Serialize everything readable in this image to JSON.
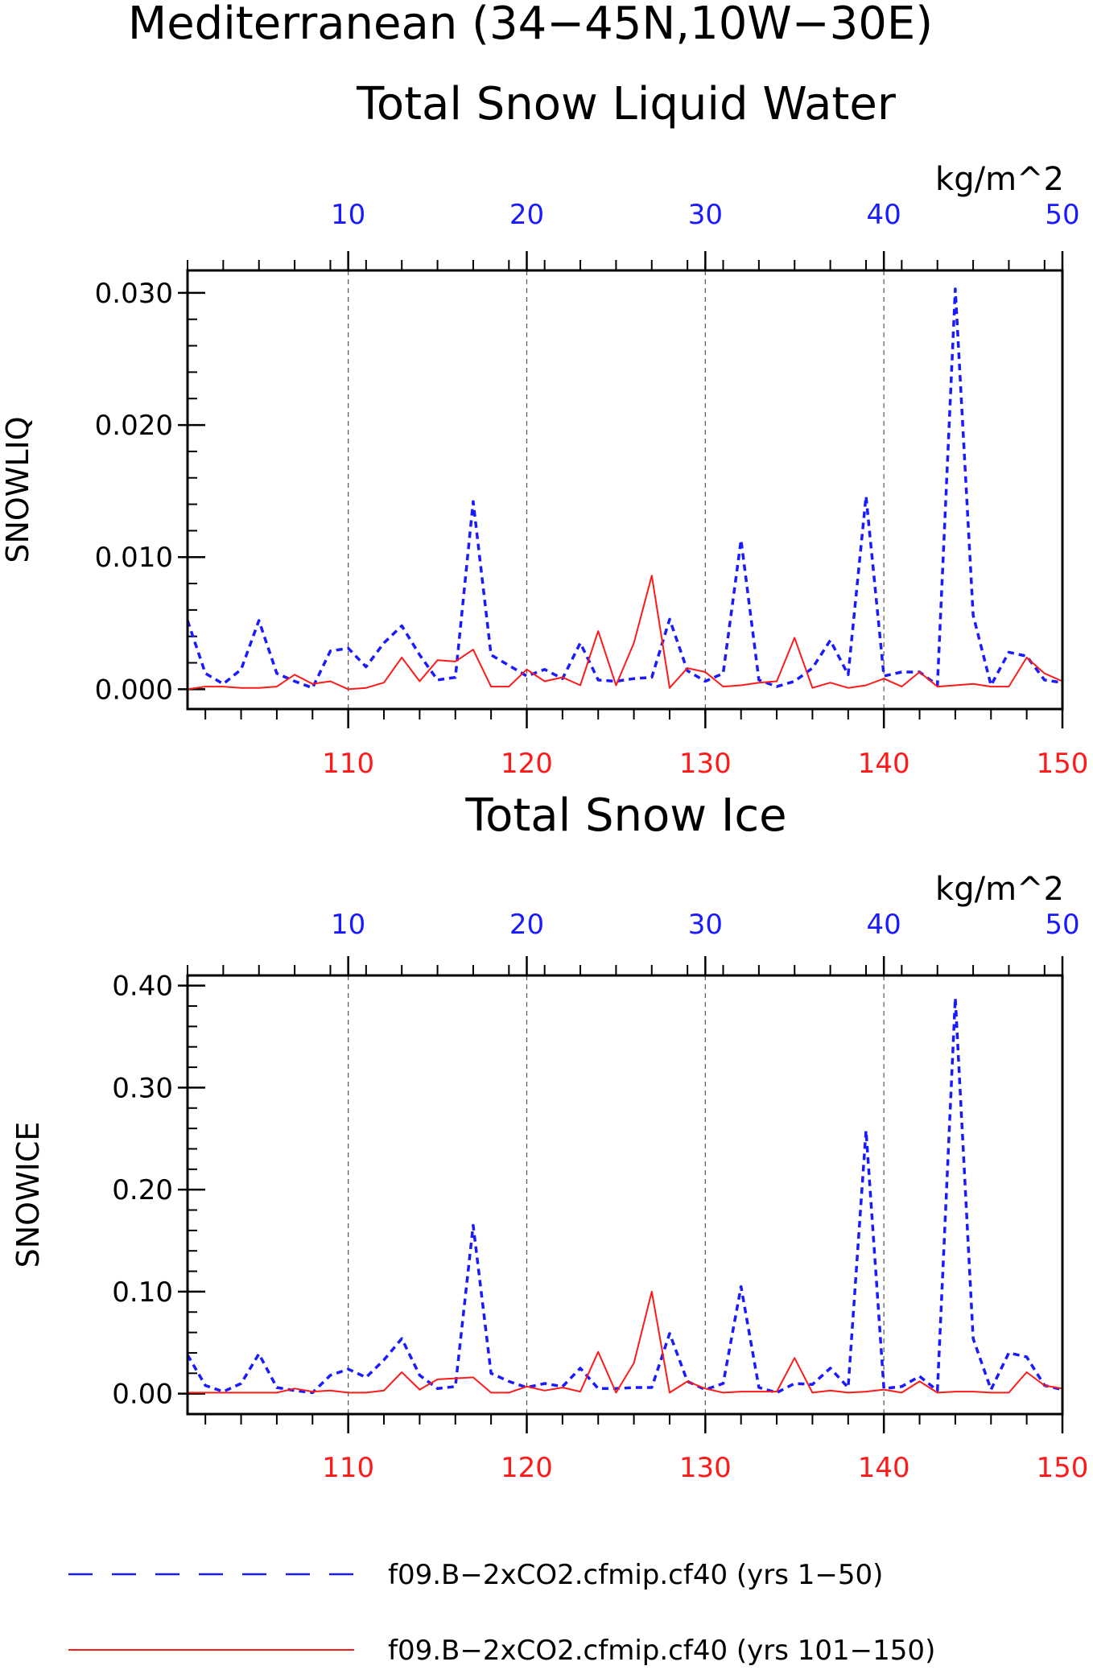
{
  "header": {
    "title_line1": "Mediterranean (34−45N,10W−30E)"
  },
  "colors": {
    "blue": "#1a1aff",
    "red": "#ff1a1a",
    "axis": "#000000",
    "grid": "#555555"
  },
  "chart_data": [
    {
      "type": "line",
      "title": "Total Snow Liquid Water",
      "units": "kg/m^2",
      "ylabel": "SNOWLIQ",
      "ylim": [
        -0.0015,
        0.0317
      ],
      "yticks": [
        0.0,
        0.01,
        0.02,
        0.03
      ],
      "ytick_labels": [
        "0.000",
        "0.010",
        "0.020",
        "0.030"
      ],
      "top_axis": {
        "range": [
          1,
          50
        ],
        "ticks": [
          10,
          20,
          30,
          40,
          50
        ],
        "tick_labels": [
          "10",
          "20",
          "30",
          "40",
          "50"
        ],
        "color": "#1a1aff"
      },
      "bottom_axis": {
        "range": [
          101,
          150
        ],
        "ticks": [
          110,
          120,
          130,
          140,
          150
        ],
        "tick_labels": [
          "110",
          "120",
          "130",
          "140",
          "150"
        ],
        "color": "#ff1a1a"
      },
      "grid": "vertical dashed at major x ticks",
      "series": [
        {
          "name": "f09.B−2xCO2.cfmip.cf40 (yrs 1−50)",
          "axis": "top",
          "style": "dashed",
          "color": "#1a1aff",
          "x": [
            1,
            2,
            3,
            4,
            5,
            6,
            7,
            8,
            9,
            10,
            11,
            12,
            13,
            14,
            15,
            16,
            17,
            18,
            19,
            20,
            21,
            22,
            23,
            24,
            25,
            26,
            27,
            28,
            29,
            30,
            31,
            32,
            33,
            34,
            35,
            36,
            37,
            38,
            39,
            40,
            41,
            42,
            43,
            44,
            45,
            46,
            47,
            48,
            49,
            50
          ],
          "values": [
            0.0052,
            0.0012,
            0.0004,
            0.0015,
            0.0052,
            0.0012,
            0.0006,
            0.0001,
            0.0029,
            0.0031,
            0.0017,
            0.0035,
            0.0048,
            0.0026,
            0.0007,
            0.0009,
            0.0142,
            0.0026,
            0.0018,
            0.001,
            0.0015,
            0.0008,
            0.0035,
            0.0007,
            0.0006,
            0.0008,
            0.0009,
            0.0053,
            0.0014,
            0.0006,
            0.0012,
            0.0113,
            0.0007,
            0.0002,
            0.0006,
            0.0016,
            0.0037,
            0.0011,
            0.0146,
            0.001,
            0.0013,
            0.0013,
            0.0003,
            0.0303,
            0.0056,
            0.0003,
            0.0028,
            0.0025,
            0.0007,
            0.0005
          ]
        },
        {
          "name": "f09.B−2xCO2.cfmip.cf40 (yrs 101−150)",
          "axis": "bottom",
          "style": "solid",
          "color": "#ff1a1a",
          "x": [
            101,
            102,
            103,
            104,
            105,
            106,
            107,
            108,
            109,
            110,
            111,
            112,
            113,
            114,
            115,
            116,
            117,
            118,
            119,
            120,
            121,
            122,
            123,
            124,
            125,
            126,
            127,
            128,
            129,
            130,
            131,
            132,
            133,
            134,
            135,
            136,
            137,
            138,
            139,
            140,
            141,
            142,
            143,
            144,
            145,
            146,
            147,
            148,
            149,
            150
          ],
          "values": [
            0.0,
            0.0002,
            0.0002,
            0.0001,
            0.0001,
            0.0002,
            0.0011,
            0.0004,
            0.0006,
            0.0,
            0.0001,
            0.0005,
            0.0024,
            0.0006,
            0.0022,
            0.0021,
            0.003,
            0.0002,
            0.0002,
            0.0015,
            0.0006,
            0.0009,
            0.0003,
            0.0044,
            0.0003,
            0.0035,
            0.0086,
            0.0001,
            0.0016,
            0.0013,
            0.0002,
            0.0003,
            0.0005,
            0.0006,
            0.0039,
            0.0001,
            0.0005,
            0.0001,
            0.0003,
            0.0008,
            0.0002,
            0.0013,
            0.0002,
            0.0003,
            0.0004,
            0.0002,
            0.0002,
            0.0024,
            0.0012,
            0.0006
          ]
        }
      ]
    },
    {
      "type": "line",
      "title": "Total Snow Ice",
      "units": "kg/m^2",
      "ylabel": "SNOWICE",
      "ylim": [
        -0.02,
        0.41
      ],
      "yticks": [
        0.0,
        0.1,
        0.2,
        0.3,
        0.4
      ],
      "ytick_labels": [
        "0.00",
        "0.10",
        "0.20",
        "0.30",
        "0.40"
      ],
      "top_axis": {
        "range": [
          1,
          50
        ],
        "ticks": [
          10,
          20,
          30,
          40,
          50
        ],
        "tick_labels": [
          "10",
          "20",
          "30",
          "40",
          "50"
        ],
        "color": "#1a1aff"
      },
      "bottom_axis": {
        "range": [
          101,
          150
        ],
        "ticks": [
          110,
          120,
          130,
          140,
          150
        ],
        "tick_labels": [
          "110",
          "120",
          "130",
          "140",
          "150"
        ],
        "color": "#ff1a1a"
      },
      "grid": "vertical dashed at major x ticks",
      "series": [
        {
          "name": "f09.B−2xCO2.cfmip.cf40 (yrs 1−50)",
          "axis": "top",
          "style": "dashed",
          "color": "#1a1aff",
          "x": [
            1,
            2,
            3,
            4,
            5,
            6,
            7,
            8,
            9,
            10,
            11,
            12,
            13,
            14,
            15,
            16,
            17,
            18,
            19,
            20,
            21,
            22,
            23,
            24,
            25,
            26,
            27,
            28,
            29,
            30,
            31,
            32,
            33,
            34,
            35,
            36,
            37,
            38,
            39,
            40,
            41,
            42,
            43,
            44,
            45,
            46,
            47,
            48,
            49,
            50
          ],
          "values": [
            0.038,
            0.008,
            0.002,
            0.01,
            0.039,
            0.006,
            0.003,
            0.001,
            0.018,
            0.024,
            0.016,
            0.033,
            0.054,
            0.018,
            0.005,
            0.007,
            0.165,
            0.02,
            0.012,
            0.006,
            0.01,
            0.007,
            0.025,
            0.005,
            0.005,
            0.006,
            0.006,
            0.059,
            0.012,
            0.004,
            0.01,
            0.105,
            0.006,
            0.001,
            0.01,
            0.009,
            0.025,
            0.006,
            0.258,
            0.005,
            0.007,
            0.017,
            0.003,
            0.388,
            0.054,
            0.004,
            0.04,
            0.036,
            0.008,
            0.004
          ]
        },
        {
          "name": "f09.B−2xCO2.cfmip.cf40 (yrs 101−150)",
          "axis": "bottom",
          "style": "solid",
          "color": "#ff1a1a",
          "x": [
            101,
            102,
            103,
            104,
            105,
            106,
            107,
            108,
            109,
            110,
            111,
            112,
            113,
            114,
            115,
            116,
            117,
            118,
            119,
            120,
            121,
            122,
            123,
            124,
            125,
            126,
            127,
            128,
            129,
            130,
            131,
            132,
            133,
            134,
            135,
            136,
            137,
            138,
            139,
            140,
            141,
            142,
            143,
            144,
            145,
            146,
            147,
            148,
            149,
            150
          ],
          "values": [
            0.001,
            0.001,
            0.001,
            0.001,
            0.001,
            0.001,
            0.005,
            0.002,
            0.003,
            0.001,
            0.001,
            0.003,
            0.021,
            0.004,
            0.014,
            0.015,
            0.016,
            0.001,
            0.001,
            0.007,
            0.003,
            0.006,
            0.002,
            0.041,
            0.001,
            0.03,
            0.1,
            0.001,
            0.012,
            0.005,
            0.001,
            0.002,
            0.002,
            0.002,
            0.035,
            0.001,
            0.003,
            0.001,
            0.002,
            0.004,
            0.001,
            0.012,
            0.001,
            0.002,
            0.002,
            0.001,
            0.001,
            0.021,
            0.008,
            0.005
          ]
        }
      ]
    }
  ]
}
